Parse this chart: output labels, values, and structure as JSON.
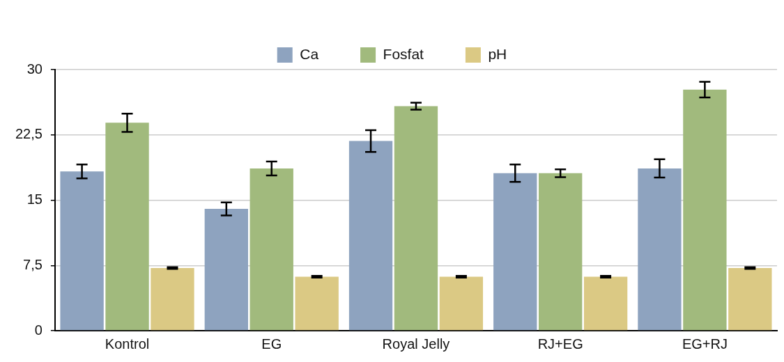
{
  "chart_data": {
    "type": "bar",
    "categories": [
      "Kontrol",
      "EG",
      "Royal Jelly",
      "RJ+EG",
      "EG+RJ"
    ],
    "series": [
      {
        "name": "Ca",
        "color": "#8ea3bf",
        "values": [
          18.3,
          14.0,
          21.8,
          18.1,
          18.65
        ],
        "errors": [
          0.8,
          0.75,
          1.25,
          1.0,
          1.05
        ]
      },
      {
        "name": "Fosfat",
        "color": "#a1ba7d",
        "values": [
          23.9,
          18.65,
          25.8,
          18.1,
          27.7
        ],
        "errors": [
          1.05,
          0.8,
          0.4,
          0.45,
          0.9
        ]
      },
      {
        "name": "pH",
        "color": "#dbc984",
        "values": [
          7.2,
          6.2,
          6.2,
          6.2,
          7.2
        ],
        "errors": [
          0.1,
          0.1,
          0.1,
          0.1,
          0.1
        ]
      }
    ],
    "ylim": [
      0,
      30
    ],
    "yticks": [
      0,
      {
        "value": 7.5,
        "label": "7,5"
      },
      15,
      {
        "value": 22.5,
        "label": "22,5"
      },
      30
    ],
    "grid": "y",
    "legend": "top"
  }
}
